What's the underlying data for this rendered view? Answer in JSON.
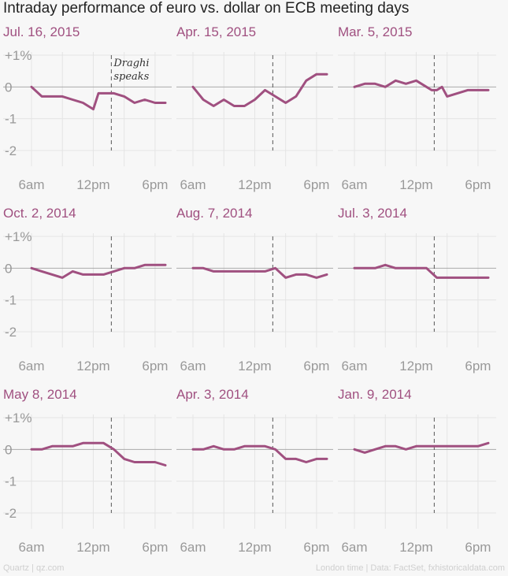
{
  "title": "Intraday performance of euro vs. dollar on ECB meeting days",
  "footer": {
    "left": "Quartz | qz.com",
    "right": "London time | Data: FactSet, fxhistoricaldata.com"
  },
  "colors": {
    "series": "#a05080",
    "panel_title": "#a05080",
    "zero_line": "#aaaaaa",
    "grid": "#e4e4e4",
    "event_line": "#555555"
  },
  "annotation": "Draghi speaks",
  "chart_data": [
    {
      "type": "line",
      "title": "Jul. 16, 2015",
      "x": [
        6,
        7,
        8,
        9,
        10,
        11,
        12,
        12.5,
        13,
        14,
        15,
        16,
        17,
        18,
        19
      ],
      "values": [
        0,
        -0.3,
        -0.3,
        -0.3,
        -0.4,
        -0.5,
        -0.7,
        -0.2,
        -0.2,
        -0.2,
        -0.3,
        -0.5,
        -0.4,
        -0.5,
        -0.5
      ],
      "event_x": 13.75,
      "y_ticks": [
        "+1%",
        "0",
        "-1",
        "-2"
      ],
      "x_ticks": [
        "6am",
        "12pm",
        "6pm"
      ],
      "ylim": [
        -2,
        1
      ]
    },
    {
      "type": "line",
      "title": "Apr. 15, 2015",
      "x": [
        6,
        7,
        8,
        9,
        10,
        11,
        12,
        13,
        14,
        15,
        16,
        17,
        18,
        19
      ],
      "values": [
        0,
        -0.4,
        -0.6,
        -0.4,
        -0.6,
        -0.6,
        -0.4,
        -0.1,
        -0.3,
        -0.5,
        -0.3,
        0.2,
        0.4,
        0.4
      ],
      "event_x": 13.75,
      "y_ticks": [
        "+1%",
        "0",
        "-1",
        "-2"
      ],
      "x_ticks": [
        "6am",
        "12pm",
        "6pm"
      ],
      "ylim": [
        -2,
        1
      ]
    },
    {
      "type": "line",
      "title": "Mar. 5, 2015",
      "x": [
        6,
        7,
        8,
        9,
        10,
        11,
        12,
        13,
        13.5,
        14,
        14.5,
        15,
        16,
        17,
        18,
        19
      ],
      "values": [
        0,
        0.1,
        0.1,
        0,
        0.2,
        0.1,
        0.2,
        0,
        -0.1,
        -0.1,
        0,
        -0.3,
        -0.2,
        -0.1,
        -0.1,
        -0.1
      ],
      "event_x": 13.75,
      "y_ticks": [
        "+1%",
        "0",
        "-1",
        "-2"
      ],
      "x_ticks": [
        "6am",
        "12pm",
        "6pm"
      ],
      "ylim": [
        -2,
        1
      ]
    },
    {
      "type": "line",
      "title": "Oct. 2, 2014",
      "x": [
        6,
        7,
        8,
        9,
        10,
        11,
        12,
        13,
        14,
        15,
        16,
        17,
        18,
        19
      ],
      "values": [
        0,
        -0.1,
        -0.2,
        -0.3,
        -0.1,
        -0.2,
        -0.2,
        -0.2,
        -0.1,
        0,
        0,
        0.1,
        0.1,
        0.1
      ],
      "event_x": 13.75,
      "y_ticks": [
        "+1%",
        "0",
        "-1",
        "-2"
      ],
      "x_ticks": [
        "6am",
        "12pm",
        "6pm"
      ],
      "ylim": [
        -2,
        1
      ]
    },
    {
      "type": "line",
      "title": "Aug. 7, 2014",
      "x": [
        6,
        7,
        8,
        9,
        10,
        11,
        12,
        13,
        14,
        15,
        16,
        17,
        18,
        19
      ],
      "values": [
        0,
        0,
        -0.1,
        -0.1,
        -0.1,
        -0.1,
        -0.1,
        -0.1,
        0,
        -0.3,
        -0.2,
        -0.2,
        -0.3,
        -0.2
      ],
      "event_x": 13.75,
      "y_ticks": [
        "+1%",
        "0",
        "-1",
        "-2"
      ],
      "x_ticks": [
        "6am",
        "12pm",
        "6pm"
      ],
      "ylim": [
        -2,
        1
      ]
    },
    {
      "type": "line",
      "title": "Jul. 3, 2014",
      "x": [
        6,
        7,
        8,
        9,
        10,
        11,
        12,
        13,
        14,
        15,
        16,
        17,
        18,
        19
      ],
      "values": [
        0,
        0,
        0,
        0.1,
        0,
        0,
        0,
        0,
        -0.3,
        -0.3,
        -0.3,
        -0.3,
        -0.3,
        -0.3
      ],
      "event_x": 13.75,
      "y_ticks": [
        "+1%",
        "0",
        "-1",
        "-2"
      ],
      "x_ticks": [
        "6am",
        "12pm",
        "6pm"
      ],
      "ylim": [
        -2,
        1
      ]
    },
    {
      "type": "line",
      "title": "May 8, 2014",
      "x": [
        6,
        7,
        8,
        9,
        10,
        11,
        12,
        13,
        14,
        15,
        16,
        17,
        18,
        19
      ],
      "values": [
        0,
        0,
        0.1,
        0.1,
        0.1,
        0.2,
        0.2,
        0.2,
        0,
        -0.3,
        -0.4,
        -0.4,
        -0.4,
        -0.5
      ],
      "event_x": 13.75,
      "y_ticks": [
        "+1%",
        "0",
        "-1",
        "-2"
      ],
      "x_ticks": [
        "6am",
        "12pm",
        "6pm"
      ],
      "ylim": [
        -2,
        1
      ]
    },
    {
      "type": "line",
      "title": "Apr. 3, 2014",
      "x": [
        6,
        7,
        8,
        9,
        10,
        11,
        12,
        13,
        14,
        15,
        16,
        17,
        18,
        19
      ],
      "values": [
        0,
        0,
        0.1,
        0,
        0,
        0.1,
        0.1,
        0.1,
        0,
        -0.3,
        -0.3,
        -0.4,
        -0.3,
        -0.3
      ],
      "event_x": 13.75,
      "y_ticks": [
        "+1%",
        "0",
        "-1",
        "-2"
      ],
      "x_ticks": [
        "6am",
        "12pm",
        "6pm"
      ],
      "ylim": [
        -2,
        1
      ]
    },
    {
      "type": "line",
      "title": "Jan. 9, 2014",
      "x": [
        6,
        7,
        8,
        9,
        10,
        11,
        12,
        13,
        14,
        15,
        16,
        17,
        18,
        19
      ],
      "values": [
        0,
        -0.1,
        0,
        0.1,
        0.1,
        0,
        0.1,
        0.1,
        0.1,
        0.1,
        0.1,
        0.1,
        0.1,
        0.2
      ],
      "event_x": 13.75,
      "y_ticks": [
        "+1%",
        "0",
        "-1",
        "-2"
      ],
      "x_ticks": [
        "6am",
        "12pm",
        "6pm"
      ],
      "ylim": [
        -2,
        1
      ]
    }
  ]
}
